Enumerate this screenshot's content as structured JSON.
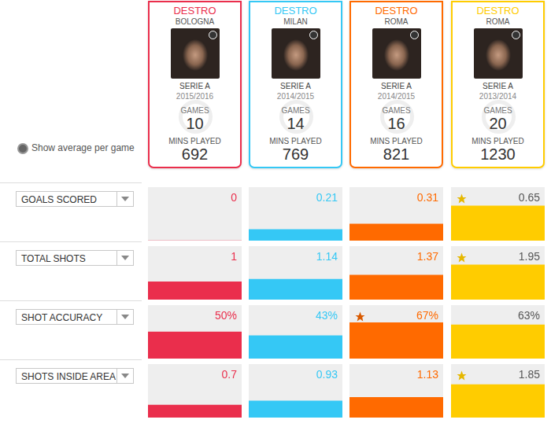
{
  "toggle_label": "Show average per game",
  "games_label": "GAMES",
  "mins_label": "MINS PLAYED",
  "players": [
    {
      "name": "DESTRO",
      "club": "BOLOGNA",
      "league": "SERIE A",
      "season": "2015/2016",
      "games": 10,
      "mins_played": 692,
      "color": "#ea2e4c"
    },
    {
      "name": "DESTRO",
      "club": "MILAN",
      "league": "SERIE A",
      "season": "2014/2015",
      "games": 14,
      "mins_played": 769,
      "color": "#35c8f5"
    },
    {
      "name": "DESTRO",
      "club": "ROMA",
      "league": "SERIE A",
      "season": "2014/2015",
      "games": 16,
      "mins_played": 821,
      "color": "#ff6a00"
    },
    {
      "name": "DESTRO",
      "club": "ROMA",
      "league": "SERIE A",
      "season": "2013/2014",
      "games": 20,
      "mins_played": 1230,
      "color": "#ffcc00"
    }
  ],
  "chart_data": [
    {
      "type": "bar",
      "title": "GOALS SCORED",
      "values": [
        0,
        0.21,
        0.31,
        0.65
      ],
      "colors": [
        "#ea2e4c",
        "#35c8f5",
        "#ff6a00",
        "#ffcc00"
      ],
      "ylim": [
        0,
        1
      ],
      "data_labels": true,
      "tick_labels": false
    },
    {
      "type": "bar",
      "title": "TOTAL SHOTS",
      "values": [
        1,
        1.14,
        1.37,
        1.95
      ],
      "colors": [
        "#ea2e4c",
        "#35c8f5",
        "#ff6a00",
        "#ffcc00"
      ],
      "ylim": [
        0,
        3
      ],
      "data_labels": true,
      "tick_labels": false
    },
    {
      "type": "bar",
      "title": "SHOT ACCURACY",
      "values": [
        50,
        43,
        67,
        63
      ],
      "value_labels": [
        "50%",
        "43%",
        "67%",
        "63%"
      ],
      "colors": [
        "#ea2e4c",
        "#35c8f5",
        "#ff6a00",
        "#ffcc00"
      ],
      "ylim": [
        0,
        100
      ],
      "data_labels": true,
      "tick_labels": false
    },
    {
      "type": "bar",
      "title": "SHOTS INSIDE AREA",
      "values": [
        0.7,
        0.93,
        1.13,
        1.85
      ],
      "colors": [
        "#ea2e4c",
        "#35c8f5",
        "#ff6a00",
        "#ffcc00"
      ],
      "ylim": [
        0,
        3
      ],
      "data_labels": true,
      "tick_labels": false
    }
  ]
}
